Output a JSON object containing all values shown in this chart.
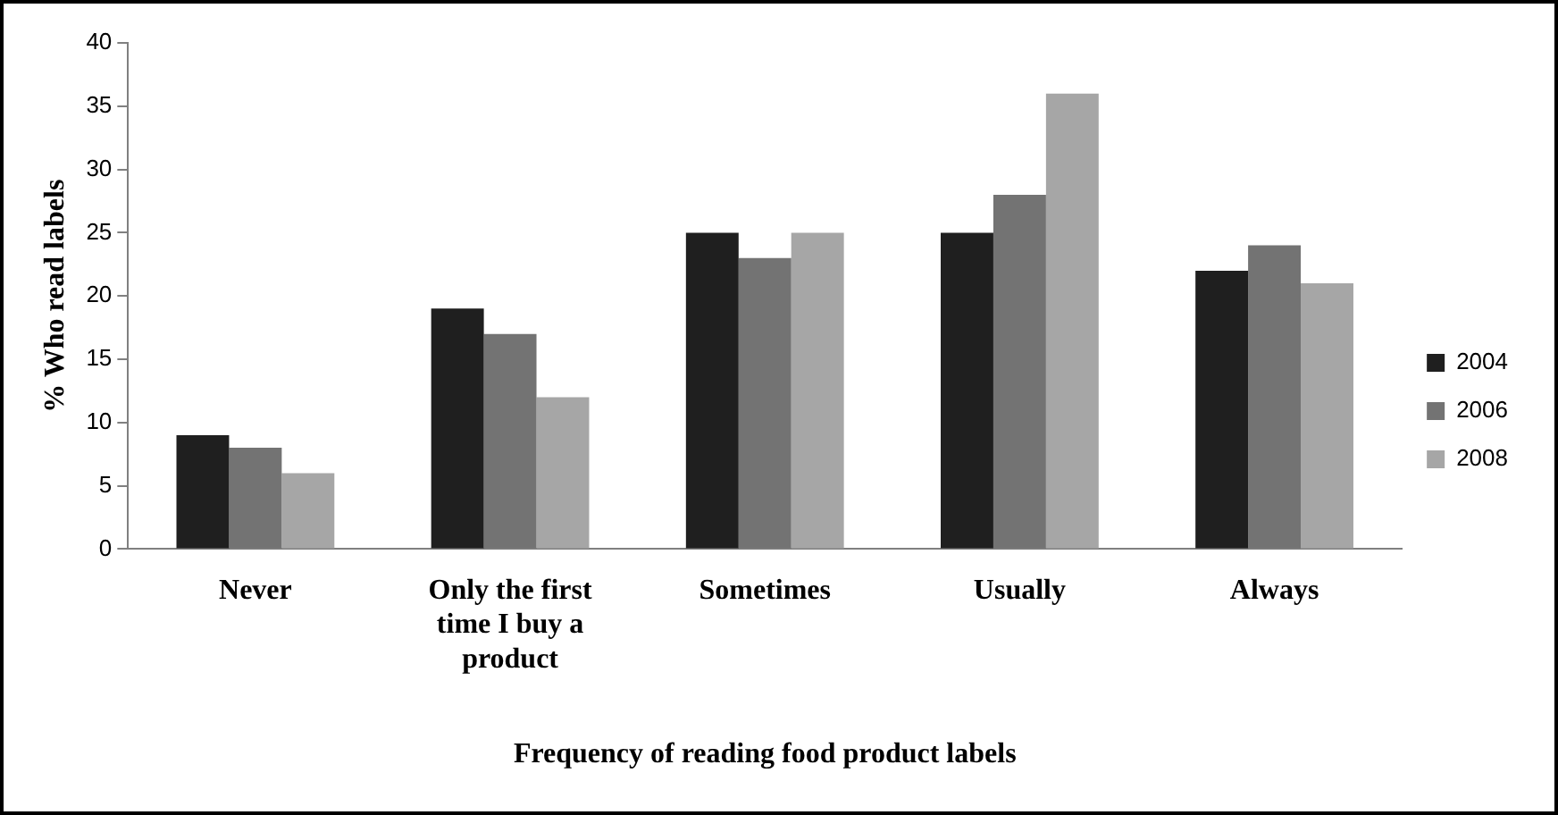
{
  "chart_data": {
    "type": "bar",
    "xlabel": "Frequency of reading food product labels",
    "ylabel": "% Who read labels",
    "categories": [
      "Never",
      "Only the first time I buy a product",
      "Sometimes",
      "Usually",
      "Always"
    ],
    "series": [
      {
        "name": "2004",
        "color": "#1f1f1f",
        "values": [
          9,
          19,
          25,
          25,
          22
        ]
      },
      {
        "name": "2006",
        "color": "#737373",
        "values": [
          8,
          17,
          23,
          28,
          24
        ]
      },
      {
        "name": "2008",
        "color": "#a6a6a6",
        "values": [
          6,
          12,
          25,
          36,
          21
        ]
      }
    ],
    "ylim": [
      0,
      40
    ],
    "yticks": [
      0,
      5,
      10,
      15,
      20,
      25,
      30,
      35,
      40
    ],
    "grid": false,
    "legend": "right"
  }
}
